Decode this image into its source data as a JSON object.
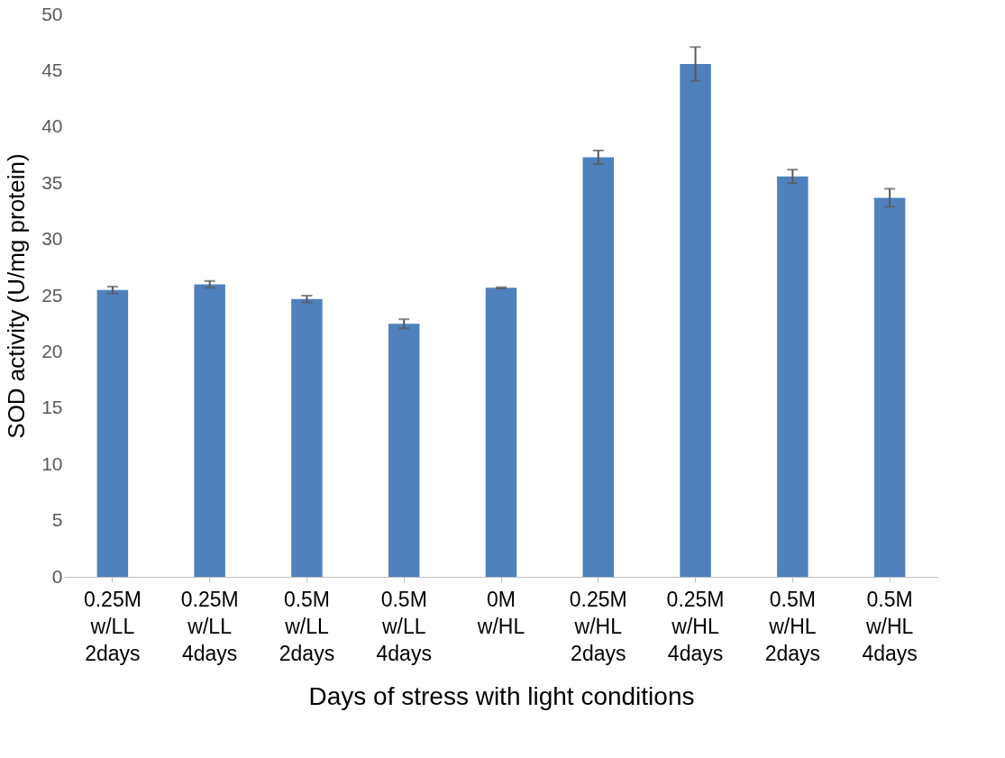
{
  "chart_data": {
    "type": "bar",
    "xlabel": "Days of stress with light conditions",
    "ylabel": "SOD activity (U/mg protein)",
    "categories": [
      "0.25M\nw/LL\n2days",
      "0.25M\nw/LL\n4days",
      "0.5M\nw/LL\n2days",
      "0.5M\nw/LL\n4days",
      "0M\nw/HL",
      "0.25M\nw/HL\n2days",
      "0.25M\nw/HL\n4days",
      "0.5M\nw/HL\n2days",
      "0.5M\nw/HL\n4days"
    ],
    "values": [
      25.5,
      26.0,
      24.7,
      22.5,
      25.7,
      37.3,
      45.6,
      35.6,
      33.7
    ],
    "errors": [
      0.3,
      0.3,
      0.3,
      0.4,
      0.05,
      0.6,
      1.5,
      0.6,
      0.8
    ],
    "color": "#4f81bd",
    "ylim": [
      0,
      50
    ],
    "yticks": [
      0,
      5,
      10,
      15,
      20,
      25,
      30,
      35,
      40,
      45,
      50
    ],
    "grid": false
  }
}
